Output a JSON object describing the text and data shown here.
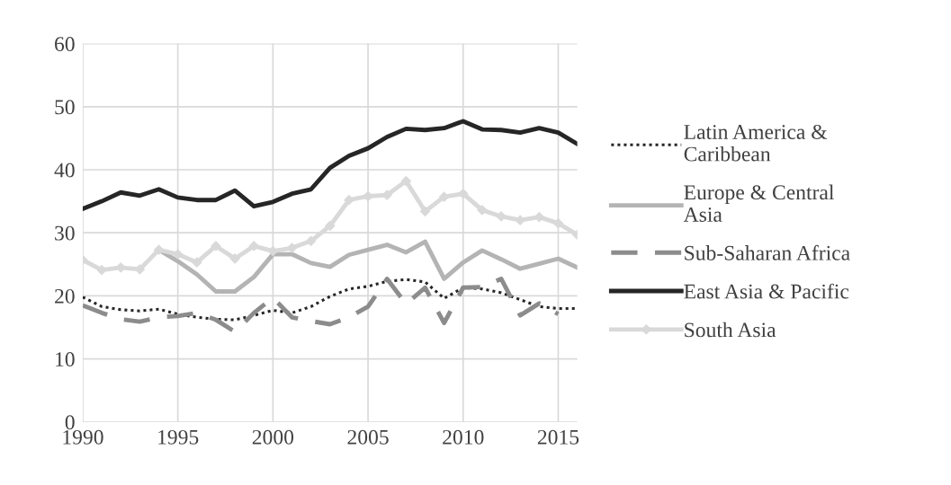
{
  "chart_data": {
    "type": "line",
    "x": [
      1990,
      1991,
      1992,
      1993,
      1994,
      1995,
      1996,
      1997,
      1998,
      1999,
      2000,
      2001,
      2002,
      2003,
      2004,
      2005,
      2006,
      2007,
      2008,
      2009,
      2010,
      2011,
      2012,
      2013,
      2014,
      2015,
      2016
    ],
    "xlim": [
      1990,
      2016
    ],
    "xticks": [
      1990,
      1995,
      2000,
      2005,
      2010,
      2015
    ],
    "ylim": [
      0,
      60
    ],
    "yticks": [
      0,
      10,
      20,
      30,
      40,
      50,
      60
    ],
    "grid": true,
    "legend": "right",
    "series": [
      {
        "name": "Latin America &\nCaribbean",
        "color": "#262626",
        "line_style": "dotted",
        "marker": "none",
        "values": [
          19.8,
          18.3,
          17.8,
          17.6,
          17.9,
          17.1,
          16.6,
          16.3,
          16.2,
          16.9,
          17.7,
          17.3,
          18.3,
          19.9,
          21.1,
          21.5,
          22.3,
          22.6,
          22.2,
          19.6,
          21.3,
          21.1,
          20.5,
          19.4,
          18.3,
          18.0,
          18.0
        ]
      },
      {
        "name": "Europe & Central\nAsia",
        "color": "#b4b4b4",
        "line_style": "solid",
        "marker": "none",
        "values": [
          null,
          null,
          null,
          null,
          27.3,
          25.5,
          23.4,
          20.7,
          20.7,
          23.0,
          26.6,
          26.6,
          25.2,
          24.6,
          26.5,
          27.3,
          28.1,
          26.9,
          28.6,
          22.7,
          25.3,
          27.2,
          25.8,
          24.3,
          25.1,
          25.9,
          24.5
        ]
      },
      {
        "name": "Sub-Saharan Africa",
        "color": "#8c8c8c",
        "line_style": "dashed",
        "marker": "none",
        "values": [
          18.5,
          17.3,
          16.3,
          15.9,
          16.6,
          16.8,
          17.3,
          16.2,
          14.3,
          17.3,
          19.7,
          16.6,
          16.0,
          15.5,
          16.6,
          18.3,
          22.7,
          18.7,
          21.3,
          15.7,
          21.3,
          21.4,
          22.7,
          16.9,
          18.8,
          17.1,
          null
        ]
      },
      {
        "name": "East Asia & Pacific",
        "color": "#262626",
        "line_style": "solid",
        "marker": "none",
        "values": [
          33.8,
          35.0,
          36.4,
          35.9,
          36.9,
          35.6,
          35.2,
          35.2,
          36.7,
          34.2,
          34.9,
          36.2,
          36.9,
          40.3,
          42.2,
          43.4,
          45.2,
          46.5,
          46.3,
          46.6,
          47.7,
          46.4,
          46.3,
          45.9,
          46.6,
          45.9,
          44.1
        ]
      },
      {
        "name": "South Asia",
        "color": "#d9d9d9",
        "line_style": "solid",
        "marker": "diamond",
        "values": [
          25.7,
          24.1,
          24.5,
          24.2,
          27.3,
          26.6,
          25.3,
          27.9,
          25.9,
          27.9,
          27.1,
          27.6,
          28.7,
          31.1,
          35.2,
          35.8,
          36.0,
          38.2,
          33.4,
          35.7,
          36.2,
          33.6,
          32.6,
          32.0,
          32.5,
          31.5,
          29.7
        ]
      }
    ]
  }
}
